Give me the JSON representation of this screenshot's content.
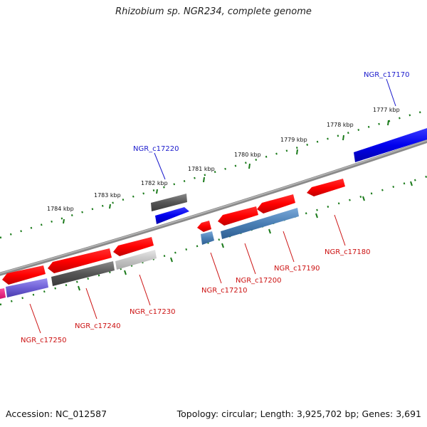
{
  "header": {
    "title": "Rhizobium sp. NGR234, complete genome"
  },
  "footer": {
    "accession": "Accession: NC_012587",
    "summary": "Topology: circular; Length: 3,925,702 bp; Genes: 3,691"
  },
  "colors": {
    "backbone": "#8a8a8a",
    "ruler_dots": "#1a7a1a",
    "plus_label": "#1a1acc",
    "minus_label": "#cc1111"
  },
  "ruler_labels": [
    "1777 kbp",
    "1778 kbp",
    "1779 kbp",
    "1780 kbp",
    "1781 kbp",
    "1782 kbp",
    "1783 kbp",
    "1784 kbp"
  ],
  "gene_labels": [
    {
      "name": "NGR_c17170",
      "strand": "plus"
    },
    {
      "name": "NGR_c17220",
      "strand": "plus"
    },
    {
      "name": "NGR_c17180",
      "strand": "minus"
    },
    {
      "name": "NGR_c17190",
      "strand": "minus"
    },
    {
      "name": "NGR_c17200",
      "strand": "minus"
    },
    {
      "name": "NGR_c17210",
      "strand": "minus"
    },
    {
      "name": "NGR_c17230",
      "strand": "minus"
    },
    {
      "name": "NGR_c17240",
      "strand": "minus"
    },
    {
      "name": "NGR_c17250",
      "strand": "minus"
    }
  ]
}
